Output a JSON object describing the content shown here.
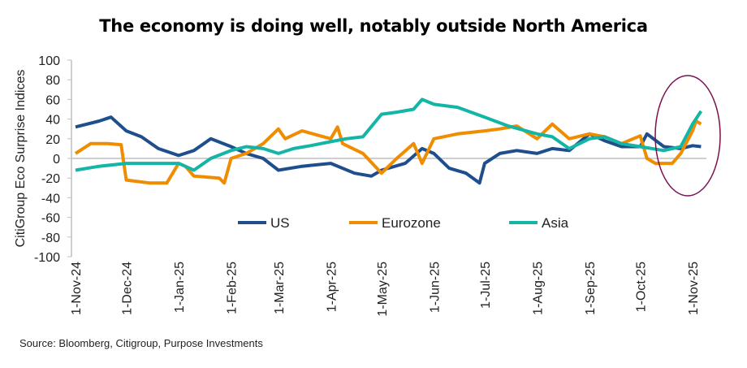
{
  "chart_data": {
    "type": "line",
    "title": "The economy is doing well, notably outside North America",
    "ylabel": "CitiGroup Eco Surprise Indices",
    "xlabel": "",
    "ylim": [
      -100,
      100
    ],
    "yticks": [
      100,
      80,
      60,
      40,
      20,
      0,
      -20,
      -40,
      -60,
      -80,
      -100
    ],
    "xticks": [
      "2024-11-01",
      "2024-12-01",
      "2025-01-01",
      "2025-02-01",
      "2025-03-01",
      "2025-04-01",
      "2025-05-01",
      "2025-06-01",
      "2025-07-01",
      "2025-08-01",
      "2025-09-01",
      "2025-10-01",
      "2025-11-01"
    ],
    "xtick_labels": [
      "1-Nov-24",
      "1-Dec-24",
      "1-Jan-25",
      "1-Feb-25",
      "1-Mar-25",
      "1-Apr-25",
      "1-May-25",
      "1-Jun-25",
      "1-Jul-25",
      "1-Aug-25",
      "1-Sep-25",
      "1-Oct-25",
      "1-Nov-25"
    ],
    "legend": "center",
    "grid": false,
    "annotation": "ellipse highlighting Oct-Nov 2025",
    "series": [
      {
        "name": "US",
        "color": "#1f4e8c",
        "points": [
          [
            "2024-11-01",
            32
          ],
          [
            "2024-11-15",
            38
          ],
          [
            "2024-11-22",
            42
          ],
          [
            "2024-12-01",
            28
          ],
          [
            "2024-12-10",
            22
          ],
          [
            "2024-12-20",
            10
          ],
          [
            "2025-01-01",
            3
          ],
          [
            "2025-01-10",
            8
          ],
          [
            "2025-01-20",
            20
          ],
          [
            "2025-02-01",
            12
          ],
          [
            "2025-02-10",
            5
          ],
          [
            "2025-02-20",
            0
          ],
          [
            "2025-03-01",
            -12
          ],
          [
            "2025-03-15",
            -8
          ],
          [
            "2025-04-01",
            -5
          ],
          [
            "2025-04-15",
            -15
          ],
          [
            "2025-04-25",
            -18
          ],
          [
            "2025-05-01",
            -12
          ],
          [
            "2025-05-15",
            -5
          ],
          [
            "2025-05-25",
            10
          ],
          [
            "2025-06-01",
            5
          ],
          [
            "2025-06-10",
            -10
          ],
          [
            "2025-06-20",
            -15
          ],
          [
            "2025-06-28",
            -25
          ],
          [
            "2025-07-01",
            -5
          ],
          [
            "2025-07-10",
            5
          ],
          [
            "2025-07-20",
            8
          ],
          [
            "2025-08-01",
            5
          ],
          [
            "2025-08-10",
            10
          ],
          [
            "2025-08-20",
            8
          ],
          [
            "2025-09-01",
            25
          ],
          [
            "2025-09-10",
            18
          ],
          [
            "2025-09-20",
            12
          ],
          [
            "2025-10-01",
            12
          ],
          [
            "2025-10-05",
            25
          ],
          [
            "2025-10-15",
            12
          ],
          [
            "2025-10-25",
            10
          ],
          [
            "2025-11-01",
            13
          ],
          [
            "2025-11-06",
            12
          ]
        ]
      },
      {
        "name": "Eurozone",
        "color": "#f08c00",
        "points": [
          [
            "2024-11-01",
            5
          ],
          [
            "2024-11-10",
            15
          ],
          [
            "2024-11-20",
            15
          ],
          [
            "2024-11-28",
            14
          ],
          [
            "2024-12-01",
            -22
          ],
          [
            "2024-12-15",
            -25
          ],
          [
            "2024-12-25",
            -25
          ],
          [
            "2025-01-01",
            -5
          ],
          [
            "2025-01-05",
            -8
          ],
          [
            "2025-01-10",
            -18
          ],
          [
            "2025-01-25",
            -20
          ],
          [
            "2025-01-28",
            -25
          ],
          [
            "2025-02-01",
            0
          ],
          [
            "2025-02-10",
            5
          ],
          [
            "2025-02-20",
            15
          ],
          [
            "2025-03-01",
            30
          ],
          [
            "2025-03-05",
            20
          ],
          [
            "2025-03-15",
            28
          ],
          [
            "2025-04-01",
            20
          ],
          [
            "2025-04-05",
            32
          ],
          [
            "2025-04-08",
            15
          ],
          [
            "2025-04-20",
            5
          ],
          [
            "2025-05-01",
            -15
          ],
          [
            "2025-05-10",
            0
          ],
          [
            "2025-05-20",
            15
          ],
          [
            "2025-05-25",
            -5
          ],
          [
            "2025-06-01",
            20
          ],
          [
            "2025-06-15",
            25
          ],
          [
            "2025-07-01",
            28
          ],
          [
            "2025-07-10",
            30
          ],
          [
            "2025-07-20",
            33
          ],
          [
            "2025-08-01",
            20
          ],
          [
            "2025-08-10",
            35
          ],
          [
            "2025-08-20",
            20
          ],
          [
            "2025-09-01",
            25
          ],
          [
            "2025-09-10",
            22
          ],
          [
            "2025-09-20",
            15
          ],
          [
            "2025-10-01",
            23
          ],
          [
            "2025-10-05",
            0
          ],
          [
            "2025-10-10",
            -5
          ],
          [
            "2025-10-20",
            -5
          ],
          [
            "2025-10-25",
            5
          ],
          [
            "2025-11-01",
            28
          ],
          [
            "2025-11-03",
            38
          ],
          [
            "2025-11-06",
            35
          ]
        ]
      },
      {
        "name": "Asia",
        "color": "#12b5a6",
        "points": [
          [
            "2024-11-01",
            -12
          ],
          [
            "2024-11-15",
            -8
          ],
          [
            "2024-12-01",
            -5
          ],
          [
            "2024-12-15",
            -5
          ],
          [
            "2025-01-01",
            -5
          ],
          [
            "2025-01-10",
            -12
          ],
          [
            "2025-01-20",
            0
          ],
          [
            "2025-02-01",
            8
          ],
          [
            "2025-02-10",
            12
          ],
          [
            "2025-02-20",
            10
          ],
          [
            "2025-03-01",
            5
          ],
          [
            "2025-03-10",
            10
          ],
          [
            "2025-03-20",
            13
          ],
          [
            "2025-04-01",
            17
          ],
          [
            "2025-04-10",
            20
          ],
          [
            "2025-04-20",
            22
          ],
          [
            "2025-05-01",
            45
          ],
          [
            "2025-05-10",
            47
          ],
          [
            "2025-05-20",
            50
          ],
          [
            "2025-05-25",
            60
          ],
          [
            "2025-06-01",
            55
          ],
          [
            "2025-06-15",
            52
          ],
          [
            "2025-07-01",
            42
          ],
          [
            "2025-07-15",
            33
          ],
          [
            "2025-08-01",
            25
          ],
          [
            "2025-08-10",
            22
          ],
          [
            "2025-08-20",
            10
          ],
          [
            "2025-09-01",
            20
          ],
          [
            "2025-09-10",
            22
          ],
          [
            "2025-09-20",
            15
          ],
          [
            "2025-10-01",
            12
          ],
          [
            "2025-10-15",
            8
          ],
          [
            "2025-10-25",
            12
          ],
          [
            "2025-11-01",
            35
          ],
          [
            "2025-11-06",
            48
          ]
        ]
      }
    ]
  },
  "source": "Source: Bloomberg, Citigroup, Purpose Investments",
  "colors": {
    "annotation": "#7a1050",
    "axis": "#bfbfbf"
  }
}
